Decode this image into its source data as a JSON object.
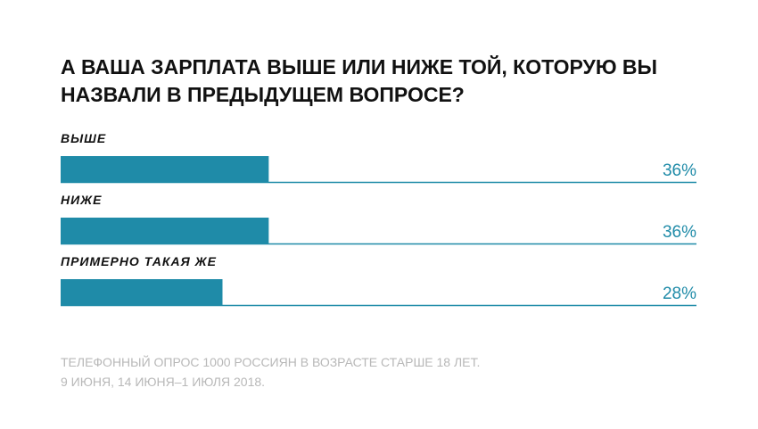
{
  "chart_data": {
    "type": "hbar",
    "title": [
      "А ВАША ЗАРПЛАТА ВЫШЕ ИЛИ НИЖЕ ТОЙ, КОТОРУЮ ВЫ",
      "НАЗВАЛИ В ПРЕДЫДУЩЕМ ВОПРОСЕ?"
    ],
    "categories": [
      "ВЫШЕ",
      "НИЖЕ",
      "ПРИМЕРНО ТАКАЯ ЖЕ"
    ],
    "values": [
      36,
      36,
      28
    ],
    "value_labels": [
      "36%",
      "36%",
      "28%"
    ],
    "color": "#1f8ba8",
    "xlim": [
      0,
      110
    ],
    "note": [
      "ТЕЛЕФОННЫЙ ОПРОС 1000 РОССИЯН В ВОЗРАСТЕ СТАРШЕ 18 ЛЕТ.",
      "9 ИЮНЯ, 14 ИЮНЯ–1 ИЮЛЯ 2018."
    ]
  }
}
